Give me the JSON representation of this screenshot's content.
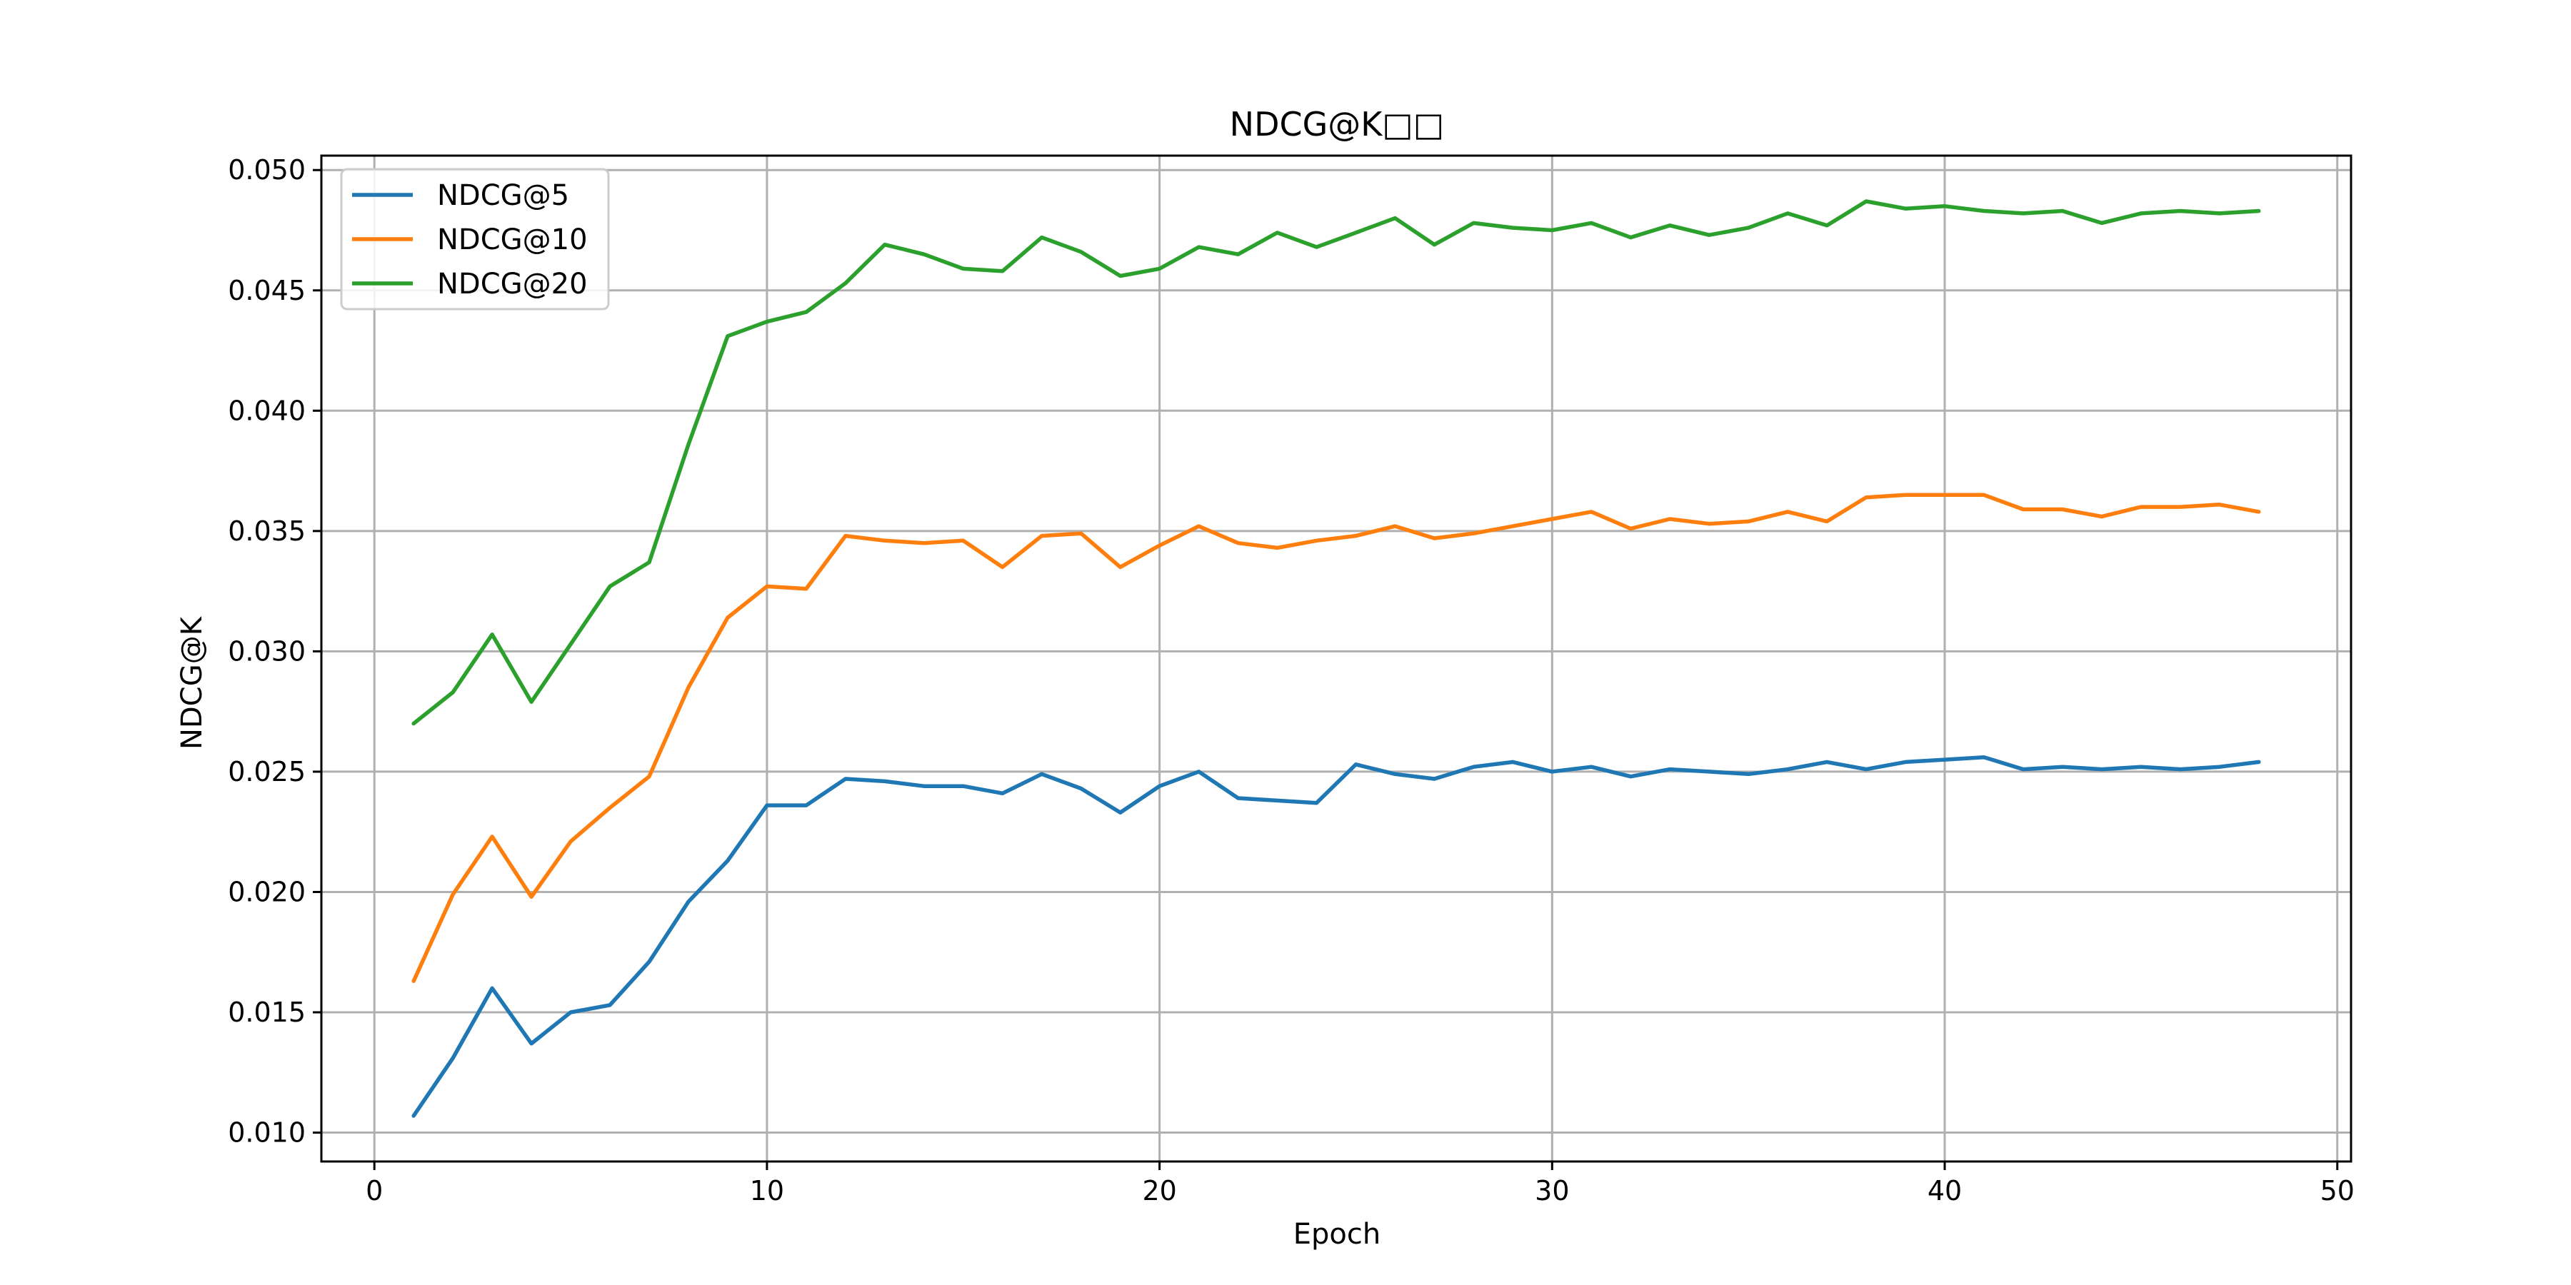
{
  "chart_data": {
    "type": "line",
    "title": "NDCG@K□□",
    "xlabel": "Epoch",
    "ylabel": "NDCG@K",
    "xlim": [
      -1.35,
      50.35
    ],
    "ylim": [
      0.0088,
      0.0506
    ],
    "xticks": [
      0,
      10,
      20,
      30,
      40,
      50
    ],
    "yticks": [
      0.01,
      0.015,
      0.02,
      0.025,
      0.03,
      0.035,
      0.04,
      0.045,
      0.05
    ],
    "grid": true,
    "legend_position": "top-left",
    "x": [
      1,
      2,
      3,
      4,
      5,
      6,
      7,
      8,
      9,
      10,
      11,
      12,
      13,
      14,
      15,
      16,
      17,
      18,
      19,
      20,
      21,
      22,
      23,
      24,
      25,
      26,
      27,
      28,
      29,
      30,
      31,
      32,
      33,
      34,
      35,
      36,
      37,
      38,
      39,
      40,
      41,
      42,
      43,
      44,
      45,
      46,
      47,
      48
    ],
    "series": [
      {
        "name": "NDCG@5",
        "color": "#1f77b4",
        "values": [
          0.0107,
          0.0131,
          0.016,
          0.0137,
          0.015,
          0.0153,
          0.0171,
          0.0196,
          0.0213,
          0.0236,
          0.0236,
          0.0247,
          0.0246,
          0.0244,
          0.0244,
          0.0241,
          0.0249,
          0.0243,
          0.0233,
          0.0244,
          0.025,
          0.0239,
          0.0238,
          0.0237,
          0.0253,
          0.0249,
          0.0247,
          0.0252,
          0.0254,
          0.025,
          0.0252,
          0.0248,
          0.0251,
          0.025,
          0.0249,
          0.0251,
          0.0254,
          0.0251,
          0.0254,
          0.0255,
          0.0256,
          0.0251,
          0.0252,
          0.0251,
          0.0252,
          0.0251,
          0.0252,
          0.0254
        ]
      },
      {
        "name": "NDCG@10",
        "color": "#ff7f0e",
        "values": [
          0.0163,
          0.0199,
          0.0223,
          0.0198,
          0.0221,
          0.0235,
          0.0248,
          0.0285,
          0.0314,
          0.0327,
          0.0326,
          0.0348,
          0.0346,
          0.0345,
          0.0346,
          0.0335,
          0.0348,
          0.0349,
          0.0335,
          0.0344,
          0.0352,
          0.0345,
          0.0343,
          0.0346,
          0.0348,
          0.0352,
          0.0347,
          0.0349,
          0.0352,
          0.0355,
          0.0358,
          0.0351,
          0.0355,
          0.0353,
          0.0354,
          0.0358,
          0.0354,
          0.0364,
          0.0365,
          0.0365,
          0.0365,
          0.0359,
          0.0359,
          0.0356,
          0.036,
          0.036,
          0.0361,
          0.0358
        ]
      },
      {
        "name": "NDCG@20",
        "color": "#2ca02c",
        "values": [
          0.027,
          0.0283,
          0.0307,
          0.0279,
          0.0303,
          0.0327,
          0.0337,
          0.0386,
          0.0431,
          0.0437,
          0.0441,
          0.0453,
          0.0469,
          0.0465,
          0.0459,
          0.0458,
          0.0472,
          0.0466,
          0.0456,
          0.0459,
          0.0468,
          0.0465,
          0.0474,
          0.0468,
          0.0474,
          0.048,
          0.0469,
          0.0478,
          0.0476,
          0.0475,
          0.0478,
          0.0472,
          0.0477,
          0.0473,
          0.0476,
          0.0482,
          0.0477,
          0.0487,
          0.0484,
          0.0485,
          0.0483,
          0.0482,
          0.0483,
          0.0478,
          0.0482,
          0.0483,
          0.0482,
          0.0483
        ]
      }
    ]
  }
}
